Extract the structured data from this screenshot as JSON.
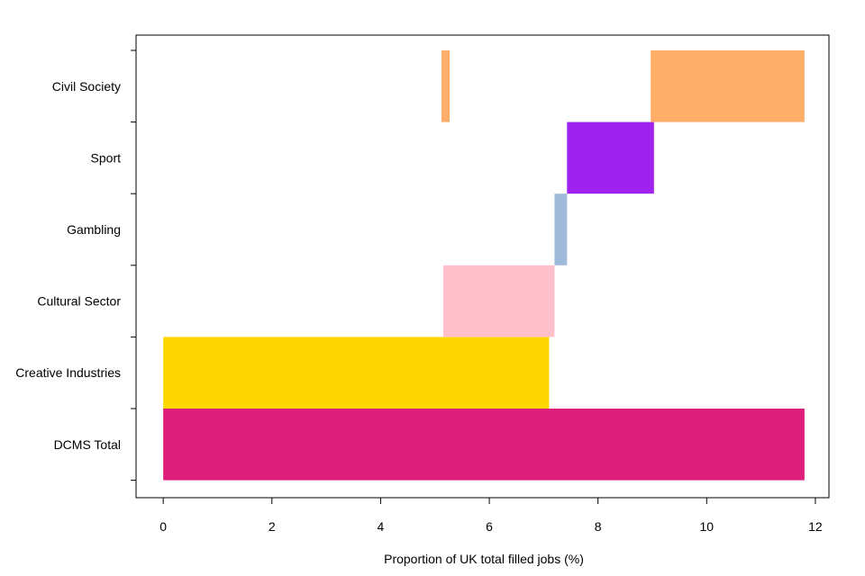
{
  "chart_data": {
    "type": "bar",
    "orientation": "horizontal",
    "style": "floating-range",
    "title": "",
    "xlabel": "Proportion of UK total filled jobs (%)",
    "ylabel": "",
    "xlim": [
      -0.5,
      12.25
    ],
    "xticks": [
      0,
      2,
      4,
      6,
      8,
      10,
      12
    ],
    "xtick_labels": [
      "0",
      "2",
      "4",
      "6",
      "8",
      "10",
      "12"
    ],
    "grid": false,
    "legend": "none",
    "categories": [
      "DCMS Total",
      "Creative Industries",
      "Cultural Sector",
      "Gambling",
      "Sport",
      "Civil Society"
    ],
    "bars": [
      {
        "category": "DCMS Total",
        "start": 0.0,
        "end": 11.8,
        "color": "#de1f79"
      },
      {
        "category": "Creative Industries",
        "start": 0.0,
        "end": 7.1,
        "color": "#ffd700"
      },
      {
        "category": "Cultural Sector",
        "start": 5.15,
        "end": 7.2,
        "color": "#ffc0cb"
      },
      {
        "category": "Gambling",
        "start": 7.2,
        "end": 7.43,
        "color": "#9fb9d8"
      },
      {
        "category": "Sport",
        "start": 7.43,
        "end": 9.03,
        "color": "#9f22ef"
      },
      {
        "category": "Civil Society",
        "start": 5.12,
        "end": 5.27,
        "color": "#ffae6a"
      },
      {
        "category": "Civil Society",
        "start": 8.97,
        "end": 11.8,
        "color": "#ffae6a"
      }
    ]
  }
}
